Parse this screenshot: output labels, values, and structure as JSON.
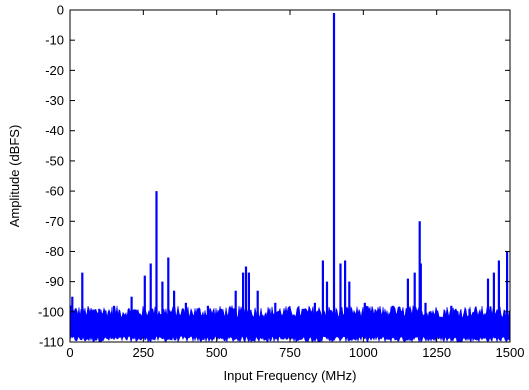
{
  "chart_data": {
    "type": "line",
    "xlabel": "Input Frequency (MHz)",
    "ylabel": "Amplitude (dBFS)",
    "xlim": [
      0,
      1500
    ],
    "ylim": [
      -110,
      0
    ],
    "x_ticks": [
      0,
      250,
      500,
      750,
      1000,
      1250,
      1500
    ],
    "x_tick_labels": [
      "0",
      "250",
      "500",
      "750",
      "1000",
      "1250",
      "1500"
    ],
    "y_ticks": [
      0,
      -10,
      -20,
      -30,
      -40,
      -50,
      -60,
      -70,
      -80,
      -90,
      -100,
      -110
    ],
    "y_tick_labels": [
      "0",
      "-10",
      "-20",
      "-30",
      "-40",
      "-50",
      "-60",
      "-70",
      "-80",
      "-90",
      "-100",
      "-110"
    ],
    "grid": false,
    "series_color": "#0000ff",
    "noise_floor": {
      "x_range": [
        0,
        1500
      ],
      "typical_db": -103,
      "range_db": [
        -110,
        -98
      ]
    },
    "spurs": [
      {
        "x": 8,
        "y": -95
      },
      {
        "x": 42,
        "y": -87
      },
      {
        "x": 100,
        "y": -99
      },
      {
        "x": 150,
        "y": -98
      },
      {
        "x": 210,
        "y": -95
      },
      {
        "x": 255,
        "y": -88
      },
      {
        "x": 275,
        "y": -84
      },
      {
        "x": 295,
        "y": -60
      },
      {
        "x": 315,
        "y": -90
      },
      {
        "x": 335,
        "y": -82
      },
      {
        "x": 355,
        "y": -93
      },
      {
        "x": 395,
        "y": -97
      },
      {
        "x": 470,
        "y": -98
      },
      {
        "x": 515,
        "y": -99
      },
      {
        "x": 565,
        "y": -93
      },
      {
        "x": 590,
        "y": -87
      },
      {
        "x": 600,
        "y": -85
      },
      {
        "x": 610,
        "y": -87
      },
      {
        "x": 640,
        "y": -93
      },
      {
        "x": 700,
        "y": -97
      },
      {
        "x": 835,
        "y": -97
      },
      {
        "x": 862,
        "y": -83
      },
      {
        "x": 876,
        "y": -90
      },
      {
        "x": 900,
        "y": -1
      },
      {
        "x": 922,
        "y": -84
      },
      {
        "x": 938,
        "y": -83
      },
      {
        "x": 952,
        "y": -90
      },
      {
        "x": 1005,
        "y": -97
      },
      {
        "x": 1100,
        "y": -98
      },
      {
        "x": 1152,
        "y": -89
      },
      {
        "x": 1175,
        "y": -87
      },
      {
        "x": 1192,
        "y": -70
      },
      {
        "x": 1196,
        "y": -84
      },
      {
        "x": 1212,
        "y": -97
      },
      {
        "x": 1300,
        "y": -98
      },
      {
        "x": 1362,
        "y": -99
      },
      {
        "x": 1425,
        "y": -89
      },
      {
        "x": 1445,
        "y": -87
      },
      {
        "x": 1462,
        "y": -83
      },
      {
        "x": 1490,
        "y": -80
      }
    ]
  }
}
